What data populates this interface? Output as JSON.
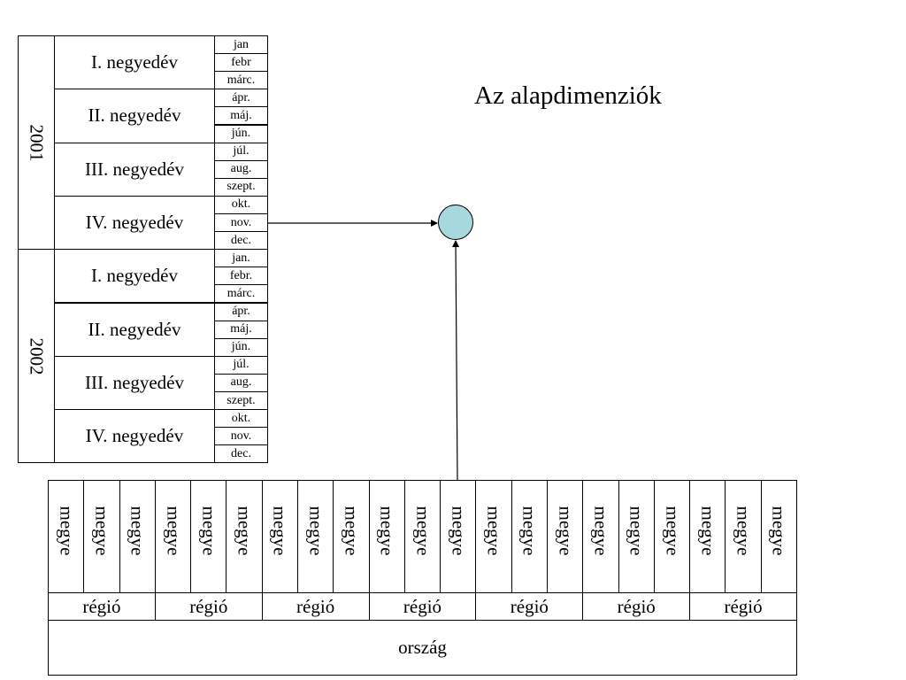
{
  "title": "Az alapdimenziók",
  "time_dimension": {
    "years": [
      {
        "label": "2001",
        "quarters": [
          {
            "label": "I. negyedév",
            "months": [
              "jan",
              "febr",
              "márc."
            ]
          },
          {
            "label": "II. negyedév",
            "months": [
              "ápr.",
              "máj.",
              "jún."
            ]
          },
          {
            "label": "III. negyedév",
            "months": [
              "júl.",
              "aug.",
              "szept."
            ]
          },
          {
            "label": "IV. negyedév",
            "months": [
              "okt.",
              "nov.",
              "dec."
            ]
          }
        ]
      },
      {
        "label": "2002",
        "quarters": [
          {
            "label": "I. negyedév",
            "months": [
              "jan.",
              "febr.",
              "márc."
            ]
          },
          {
            "label": "II. negyedév",
            "months": [
              "ápr.",
              "máj.",
              "jún."
            ]
          },
          {
            "label": "III. negyedév",
            "months": [
              "júl.",
              "aug.",
              "szept."
            ]
          },
          {
            "label": "IV. negyedév",
            "months": [
              "okt.",
              "nov.",
              "dec."
            ]
          }
        ]
      }
    ]
  },
  "geo_dimension": {
    "country": "ország",
    "regions": [
      {
        "label": "régió",
        "counties": [
          "megye",
          "megye",
          "megye"
        ]
      },
      {
        "label": "régió",
        "counties": [
          "megye",
          "megye",
          "megye"
        ]
      },
      {
        "label": "régió",
        "counties": [
          "megye",
          "megye",
          "megye"
        ]
      },
      {
        "label": "régió",
        "counties": [
          "megye",
          "megye",
          "megye"
        ]
      },
      {
        "label": "régió",
        "counties": [
          "megye",
          "megye",
          "megye"
        ]
      },
      {
        "label": "régió",
        "counties": [
          "megye",
          "megye",
          "megye"
        ]
      },
      {
        "label": "régió",
        "counties": [
          "megye",
          "megye",
          "megye"
        ]
      }
    ]
  },
  "colors": {
    "center_node_fill": "#a6d8de",
    "lines": "#000000"
  }
}
